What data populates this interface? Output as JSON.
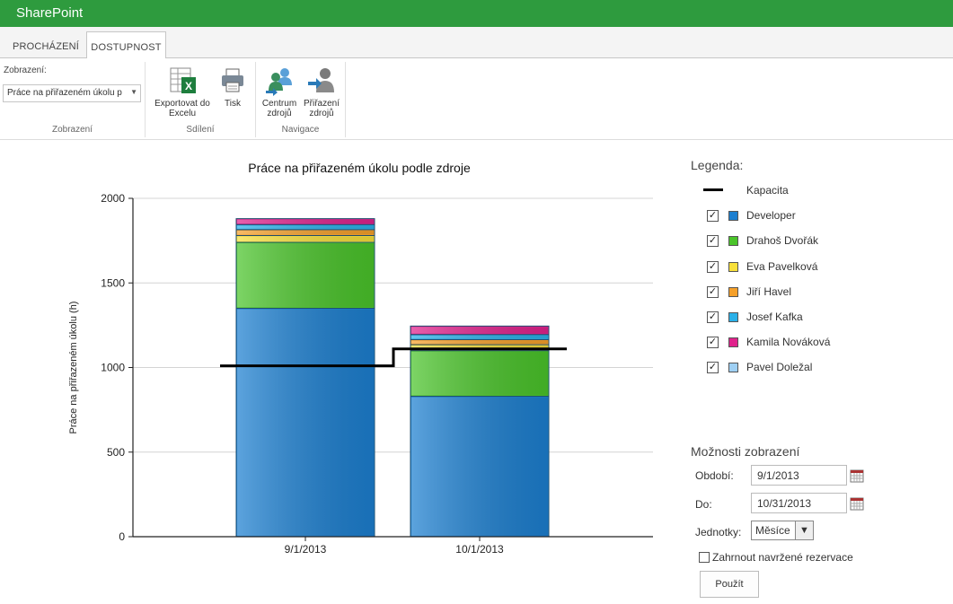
{
  "app": {
    "title": "SharePoint"
  },
  "tabs": [
    {
      "label": "PROCHÁZENÍ"
    },
    {
      "label": "DOSTUPNOST"
    }
  ],
  "ribbon": {
    "view_label": "Zobrazení:",
    "view_value": "Práce na přiřazeném úkolu p",
    "group_view": "Zobrazení",
    "group_share": "Sdílení",
    "group_nav": "Navigace",
    "export_label_1": "Exportovat do",
    "export_label_2": "Excelu",
    "print_label": "Tisk",
    "resource_center_1": "Centrum",
    "resource_center_2": "zdrojů",
    "assign_1": "Přiřazení",
    "assign_2": "zdrojů"
  },
  "chart_data": {
    "type": "bar",
    "title": "Práce na přiřazeném úkolu podle zdroje",
    "ylabel": "Práce na přiřazeném úkolu (h)",
    "xlabel": "",
    "categories": [
      "9/1/2013",
      "10/1/2013"
    ],
    "ylim": [
      0,
      2000
    ],
    "yticks": [
      0,
      500,
      1000,
      1500,
      2000
    ],
    "stacked": true,
    "series": [
      {
        "name": "Developer",
        "color": "#1c7fd0",
        "values": [
          1350,
          830
        ]
      },
      {
        "name": "Drahoš Dvořák",
        "color": "#4ac42a",
        "values": [
          390,
          270
        ]
      },
      {
        "name": "Eva Pavelková",
        "color": "#f8e03a",
        "values": [
          40,
          35
        ]
      },
      {
        "name": "Jiří Havel",
        "color": "#f5a02a",
        "values": [
          35,
          30
        ]
      },
      {
        "name": "Josef Kafka",
        "color": "#2ab0e8",
        "values": [
          30,
          30
        ]
      },
      {
        "name": "Kamila Nováková",
        "color": "#e0228c",
        "values": [
          35,
          50
        ]
      },
      {
        "name": "Pavel Doležal",
        "color": "#9fd0f4",
        "values": [
          0,
          0
        ]
      }
    ],
    "capacity": {
      "name": "Kapacita",
      "values": [
        1010,
        1110
      ]
    }
  },
  "legend": {
    "title": "Legenda:",
    "capacity_label": "Kapacita",
    "items": [
      {
        "name": "Developer",
        "color": "#1c7fd0",
        "checked": "✓"
      },
      {
        "name": "Drahoš Dvořák",
        "color": "#4ac42a",
        "checked": "✓"
      },
      {
        "name": "Eva Pavelková",
        "color": "#f8e03a",
        "checked": "✓"
      },
      {
        "name": "Jiří Havel",
        "color": "#f5a02a",
        "checked": "✓"
      },
      {
        "name": "Josef Kafka",
        "color": "#2ab0e8",
        "checked": "✓"
      },
      {
        "name": "Kamila Nováková",
        "color": "#e0228c",
        "checked": "✓"
      },
      {
        "name": "Pavel Doležal",
        "color": "#9fd0f4",
        "checked": "✓"
      }
    ]
  },
  "options": {
    "title": "Možnosti zobrazení",
    "from_label": "Období:",
    "from_value": "9/1/2013",
    "to_label": "Do:",
    "to_value": "10/31/2013",
    "units_label": "Jednotky:",
    "units_value": "Měsíce",
    "include_label": "Zahrnout navržené rezervace",
    "apply_label": "Použít"
  }
}
